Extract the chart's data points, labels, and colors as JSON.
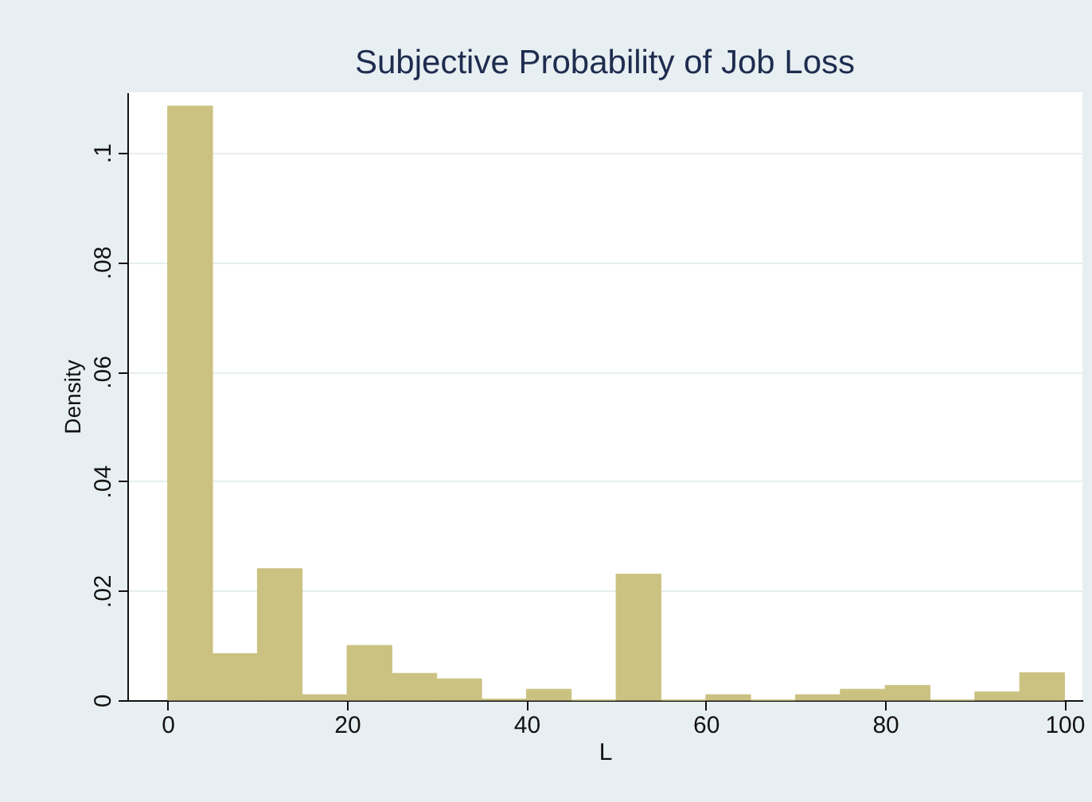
{
  "chart_data": {
    "type": "histogram",
    "title": "Subjective Probability of Job Loss",
    "xlabel": "L",
    "ylabel": "Density",
    "bins": [
      0,
      5,
      10,
      15,
      20,
      25,
      30,
      35,
      40,
      45,
      50,
      55,
      60,
      65,
      70,
      75,
      80,
      85,
      90,
      95,
      100
    ],
    "values": [
      0.1085,
      0.0085,
      0.024,
      0.001,
      0.01,
      0.0049,
      0.0039,
      0.0002,
      0.002,
      0,
      0.023,
      0,
      0.001,
      0,
      0.001,
      0.002,
      0.0027,
      0,
      0.0015,
      0.005
    ],
    "color": "#cbc282",
    "xlim": [
      -4.5,
      102
    ],
    "xticks": [
      0,
      20,
      40,
      60,
      80,
      100
    ],
    "ylim": [
      0,
      0.111
    ],
    "yticks": [
      0,
      {
        "value": 0.02,
        "label": ".02"
      },
      {
        "value": 0.04,
        "label": ".04"
      },
      {
        "value": 0.06,
        "label": ".06"
      },
      {
        "value": 0.08,
        "label": ".08"
      },
      {
        "value": 0.1,
        "label": ".1"
      }
    ],
    "grid": "y"
  }
}
